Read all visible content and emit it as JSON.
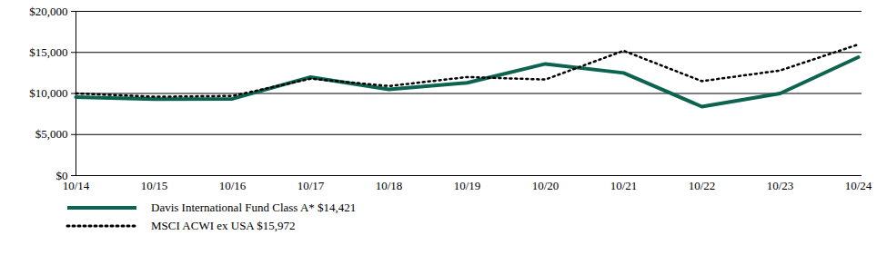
{
  "chart_data": {
    "type": "line",
    "x": [
      "10/14",
      "10/15",
      "10/16",
      "10/17",
      "10/18",
      "10/19",
      "10/20",
      "10/21",
      "10/22",
      "10/23",
      "10/24"
    ],
    "series": [
      {
        "name": "Davis International Fund Class A* $14,421",
        "color": "#0b6350",
        "line_style": "solid",
        "values": [
          9550,
          9300,
          9350,
          12000,
          10500,
          11300,
          13600,
          12500,
          8400,
          10000,
          14421
        ]
      },
      {
        "name": "MSCI ACWI ex USA $15,972",
        "color": "#000000",
        "line_style": "dotted",
        "values": [
          10000,
          9600,
          9700,
          11800,
          10900,
          12000,
          11700,
          15200,
          11500,
          12800,
          15972
        ]
      }
    ],
    "ylim": [
      0,
      20000
    ],
    "yticks": [
      {
        "value": 0,
        "label": "$0"
      },
      {
        "value": 5000,
        "label": "$5,000"
      },
      {
        "value": 10000,
        "label": "$10,000"
      },
      {
        "value": 15000,
        "label": "$15,000"
      },
      {
        "value": 20000,
        "label": "$20,000"
      }
    ],
    "grid": true
  }
}
